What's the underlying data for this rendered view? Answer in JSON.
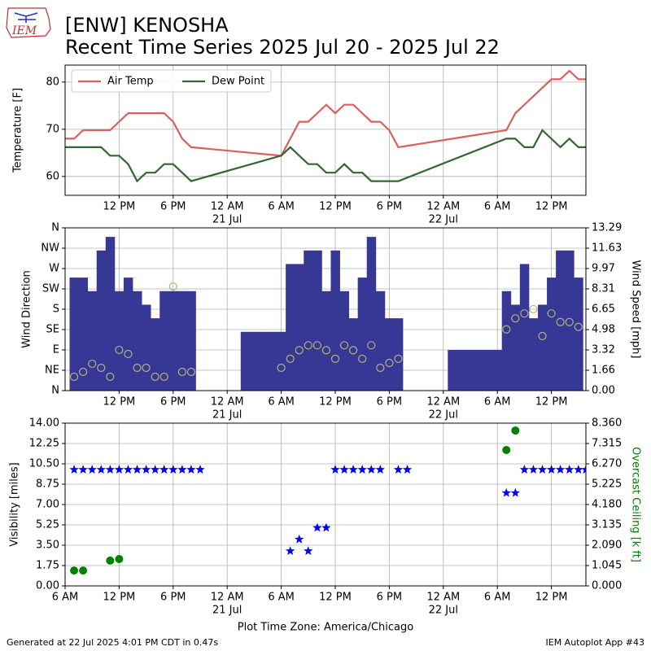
{
  "header": {
    "title": "[ENW] KENOSHA",
    "subtitle": "Recent Time Series 2025 Jul 20 - 2025 Jul 22"
  },
  "logo": {
    "text": "IEM"
  },
  "footer": {
    "left": "Generated at 22 Jul 2025 4:01 PM CDT in 0.47s",
    "right": "IEM Autoplot App #43"
  },
  "chart_data": [
    {
      "type": "line",
      "ylabel": "Temperature [F]",
      "legend": "upper left",
      "grid": true,
      "xlim": [
        "2025-07-20T06:00",
        "2025-07-22T15:50"
      ],
      "xticks": [
        {
          "value": "2025-07-20T12:00",
          "label": "12 PM"
        },
        {
          "value": "2025-07-20T18:00",
          "label": "6 PM"
        },
        {
          "value": "2025-07-21T00:00",
          "label": "12 AM",
          "sublabel": "21 Jul"
        },
        {
          "value": "2025-07-21T06:00",
          "label": "6 AM"
        },
        {
          "value": "2025-07-21T12:00",
          "label": "12 PM"
        },
        {
          "value": "2025-07-21T18:00",
          "label": "6 PM"
        },
        {
          "value": "2025-07-22T00:00",
          "label": "12 AM",
          "sublabel": "22 Jul"
        },
        {
          "value": "2025-07-22T06:00",
          "label": "6 AM"
        },
        {
          "value": "2025-07-22T12:00",
          "label": "12 PM"
        }
      ],
      "ylim": [
        56,
        83.6
      ],
      "yticks": [
        60,
        70,
        80
      ],
      "series": [
        {
          "name": "Air Temp",
          "type": "line",
          "color": "#d9605f",
          "x": [
            "2025-07-20T06:00",
            "2025-07-20T07:00",
            "2025-07-20T08:00",
            "2025-07-20T11:00",
            "2025-07-20T13:00",
            "2025-07-20T17:00",
            "2025-07-20T18:00",
            "2025-07-20T19:00",
            "2025-07-20T20:00",
            "2025-07-21T06:00",
            "2025-07-21T08:00",
            "2025-07-21T09:00",
            "2025-07-21T11:00",
            "2025-07-21T12:00",
            "2025-07-21T13:00",
            "2025-07-21T14:00",
            "2025-07-21T16:00",
            "2025-07-21T17:00",
            "2025-07-21T18:00",
            "2025-07-21T19:00",
            "2025-07-22T07:00",
            "2025-07-22T08:00",
            "2025-07-22T12:00",
            "2025-07-22T13:00",
            "2025-07-22T14:00",
            "2025-07-22T15:00",
            "2025-07-22T15:50"
          ],
          "values": [
            68,
            68,
            69.8,
            69.8,
            73.4,
            73.4,
            71.6,
            68,
            66.2,
            64.4,
            71.6,
            71.6,
            75.2,
            73.4,
            75.2,
            75.2,
            71.6,
            71.6,
            69.8,
            66.2,
            69.8,
            73.4,
            80.6,
            80.6,
            82.4,
            80.6,
            80.6
          ]
        },
        {
          "name": "Dew Point",
          "type": "line",
          "color": "#336633",
          "x": [
            "2025-07-20T06:00",
            "2025-07-20T10:00",
            "2025-07-20T11:00",
            "2025-07-20T12:00",
            "2025-07-20T13:00",
            "2025-07-20T14:00",
            "2025-07-20T15:00",
            "2025-07-20T16:00",
            "2025-07-20T17:00",
            "2025-07-20T18:00",
            "2025-07-20T20:00",
            "2025-07-21T06:00",
            "2025-07-21T07:00",
            "2025-07-21T09:00",
            "2025-07-21T10:00",
            "2025-07-21T11:00",
            "2025-07-21T12:00",
            "2025-07-21T13:00",
            "2025-07-21T14:00",
            "2025-07-21T15:00",
            "2025-07-21T16:00",
            "2025-07-21T19:00",
            "2025-07-22T07:00",
            "2025-07-22T08:00",
            "2025-07-22T09:00",
            "2025-07-22T10:00",
            "2025-07-22T11:00",
            "2025-07-22T13:00",
            "2025-07-22T14:00",
            "2025-07-22T15:00",
            "2025-07-22T15:50"
          ],
          "values": [
            66.2,
            66.2,
            64.4,
            64.4,
            62.6,
            59,
            60.8,
            60.8,
            62.6,
            62.6,
            59,
            64.4,
            66.2,
            62.6,
            62.6,
            60.8,
            60.8,
            62.6,
            60.8,
            60.8,
            59,
            59,
            68,
            68,
            66.2,
            66.2,
            69.8,
            66.2,
            68,
            66.2,
            66.2
          ]
        }
      ]
    },
    {
      "type": "bar",
      "ylabel": "Wind Direction",
      "y2label": "Wind Speed [mph]",
      "grid": true,
      "xlim": [
        "2025-07-20T06:00",
        "2025-07-22T15:50"
      ],
      "xticks": [
        {
          "value": "2025-07-20T12:00",
          "label": "12 PM"
        },
        {
          "value": "2025-07-20T18:00",
          "label": "6 PM"
        },
        {
          "value": "2025-07-21T00:00",
          "label": "12 AM",
          "sublabel": "21 Jul"
        },
        {
          "value": "2025-07-21T06:00",
          "label": "6 AM"
        },
        {
          "value": "2025-07-21T12:00",
          "label": "12 PM"
        },
        {
          "value": "2025-07-21T18:00",
          "label": "6 PM"
        },
        {
          "value": "2025-07-22T00:00",
          "label": "12 AM",
          "sublabel": "22 Jul"
        },
        {
          "value": "2025-07-22T06:00",
          "label": "6 AM"
        },
        {
          "value": "2025-07-22T12:00",
          "label": "12 PM"
        }
      ],
      "ylim": [
        0,
        360
      ],
      "yticks": [
        {
          "value": 0,
          "label": "N"
        },
        {
          "value": 45,
          "label": "NE"
        },
        {
          "value": 90,
          "label": "E"
        },
        {
          "value": 135,
          "label": "SE"
        },
        {
          "value": 180,
          "label": "S"
        },
        {
          "value": 225,
          "label": "SW"
        },
        {
          "value": 270,
          "label": "W"
        },
        {
          "value": 315,
          "label": "NW"
        },
        {
          "value": 360,
          "label": "N"
        }
      ],
      "y2lim": [
        0,
        13.29
      ],
      "y2ticks": [
        {
          "value": 0,
          "label": "0.00"
        },
        {
          "value": 1.66,
          "label": "1.66"
        },
        {
          "value": 3.32,
          "label": "3.32"
        },
        {
          "value": 4.98,
          "label": "4.98"
        },
        {
          "value": 6.65,
          "label": "6.65"
        },
        {
          "value": 8.31,
          "label": "8.31"
        },
        {
          "value": 9.97,
          "label": "9.97"
        },
        {
          "value": 11.63,
          "label": "11.63"
        },
        {
          "value": 13.29,
          "label": "13.29"
        }
      ],
      "series": [
        {
          "type": "bar",
          "color": "#373796",
          "x": [
            "2025-07-20T07:00",
            "2025-07-20T08:00",
            "2025-07-20T09:00",
            "2025-07-20T10:00",
            "2025-07-20T11:00",
            "2025-07-20T12:00",
            "2025-07-20T13:00",
            "2025-07-20T14:00",
            "2025-07-20T15:00",
            "2025-07-20T16:00",
            "2025-07-20T17:00",
            "2025-07-20T18:00",
            "2025-07-20T19:00",
            "2025-07-20T20:00",
            "2025-07-21T02:00",
            "2025-07-21T03:00",
            "2025-07-21T04:00",
            "2025-07-21T05:00",
            "2025-07-21T06:00",
            "2025-07-21T07:00",
            "2025-07-21T08:00",
            "2025-07-21T09:00",
            "2025-07-21T10:00",
            "2025-07-21T11:00",
            "2025-07-21T12:00",
            "2025-07-21T13:00",
            "2025-07-21T14:00",
            "2025-07-21T15:00",
            "2025-07-21T16:00",
            "2025-07-21T17:00",
            "2025-07-21T18:00",
            "2025-07-21T19:00",
            "2025-07-22T01:00",
            "2025-07-22T02:00",
            "2025-07-22T03:00",
            "2025-07-22T04:00",
            "2025-07-22T05:00",
            "2025-07-22T06:00",
            "2025-07-22T07:00",
            "2025-07-22T08:00",
            "2025-07-22T09:00",
            "2025-07-22T10:00",
            "2025-07-22T11:00",
            "2025-07-22T12:00",
            "2025-07-22T13:00",
            "2025-07-22T14:00",
            "2025-07-22T15:00"
          ],
          "values": [
            250,
            250,
            220,
            310,
            340,
            220,
            250,
            220,
            190,
            160,
            220,
            220,
            220,
            220,
            130,
            130,
            130,
            130,
            130,
            280,
            280,
            310,
            310,
            220,
            310,
            220,
            160,
            250,
            340,
            220,
            160,
            160,
            90,
            90,
            90,
            90,
            90,
            90,
            220,
            190,
            280,
            160,
            190,
            250,
            310,
            310,
            250
          ]
        },
        {
          "type": "scatter",
          "axis": "y2",
          "marker": "open-circle",
          "color": "#b3b37a",
          "x": [
            "2025-07-20T07:00",
            "2025-07-20T08:00",
            "2025-07-20T09:00",
            "2025-07-20T10:00",
            "2025-07-20T11:00",
            "2025-07-20T12:00",
            "2025-07-20T13:00",
            "2025-07-20T14:00",
            "2025-07-20T15:00",
            "2025-07-20T16:00",
            "2025-07-20T17:00",
            "2025-07-20T18:00",
            "2025-07-20T19:00",
            "2025-07-20T20:00",
            "2025-07-21T02:00",
            "2025-07-21T03:00",
            "2025-07-21T04:00",
            "2025-07-21T05:00",
            "2025-07-21T06:00",
            "2025-07-21T07:00",
            "2025-07-21T08:00",
            "2025-07-21T09:00",
            "2025-07-21T10:00",
            "2025-07-21T11:00",
            "2025-07-21T12:00",
            "2025-07-21T13:00",
            "2025-07-21T14:00",
            "2025-07-21T15:00",
            "2025-07-21T16:00",
            "2025-07-21T17:00",
            "2025-07-21T18:00",
            "2025-07-21T19:00",
            "2025-07-22T01:00",
            "2025-07-22T02:00",
            "2025-07-22T03:00",
            "2025-07-22T04:00",
            "2025-07-22T05:00",
            "2025-07-22T06:00",
            "2025-07-22T07:00",
            "2025-07-22T08:00",
            "2025-07-22T09:00",
            "2025-07-22T10:00",
            "2025-07-22T11:00",
            "2025-07-22T12:00",
            "2025-07-22T13:00",
            "2025-07-22T14:00",
            "2025-07-22T15:00"
          ],
          "values": [
            1.13,
            1.53,
            2.19,
            1.86,
            1.13,
            3.32,
            2.99,
            1.86,
            1.86,
            1.13,
            1.13,
            8.5,
            1.53,
            1.53,
            null,
            null,
            null,
            null,
            1.86,
            2.6,
            3.3,
            3.7,
            3.7,
            3.3,
            2.6,
            3.7,
            3.3,
            2.6,
            3.7,
            1.86,
            2.26,
            2.6,
            null,
            null,
            null,
            null,
            null,
            null,
            5.0,
            5.9,
            6.3,
            6.65,
            4.45,
            6.3,
            5.6,
            5.6,
            5.2
          ]
        }
      ]
    },
    {
      "type": "scatter",
      "ylabel": "Visibility [miles]",
      "y2label": "Overcast Ceiling [k ft]",
      "y2label_color": "#008000",
      "xlabel": "Plot Time Zone: America/Chicago",
      "grid": true,
      "xlim": [
        "2025-07-20T06:00",
        "2025-07-22T15:50"
      ],
      "xticks": [
        {
          "value": "2025-07-20T06:00",
          "label": "6 AM"
        },
        {
          "value": "2025-07-20T12:00",
          "label": "12 PM"
        },
        {
          "value": "2025-07-20T18:00",
          "label": "6 PM"
        },
        {
          "value": "2025-07-21T00:00",
          "label": "12 AM",
          "sublabel": "21 Jul"
        },
        {
          "value": "2025-07-21T06:00",
          "label": "6 AM"
        },
        {
          "value": "2025-07-21T12:00",
          "label": "12 PM"
        },
        {
          "value": "2025-07-21T18:00",
          "label": "6 PM"
        },
        {
          "value": "2025-07-22T00:00",
          "label": "12 AM",
          "sublabel": "22 Jul"
        },
        {
          "value": "2025-07-22T06:00",
          "label": "6 AM"
        },
        {
          "value": "2025-07-22T12:00",
          "label": "12 PM"
        }
      ],
      "ylim": [
        0,
        14
      ],
      "yticks": [
        {
          "value": 0,
          "label": "0.00"
        },
        {
          "value": 1.75,
          "label": "1.75"
        },
        {
          "value": 3.5,
          "label": "3.50"
        },
        {
          "value": 5.25,
          "label": "5.25"
        },
        {
          "value": 7,
          "label": "7.00"
        },
        {
          "value": 8.75,
          "label": "8.75"
        },
        {
          "value": 10.5,
          "label": "10.50"
        },
        {
          "value": 12.25,
          "label": "12.25"
        },
        {
          "value": 14,
          "label": "14.00"
        }
      ],
      "y2lim": [
        0,
        8.36
      ],
      "y2ticks": [
        {
          "value": 0,
          "label": "0.000"
        },
        {
          "value": 1.045,
          "label": "1.045"
        },
        {
          "value": 2.09,
          "label": "2.090"
        },
        {
          "value": 3.135,
          "label": "3.135"
        },
        {
          "value": 4.18,
          "label": "4.180"
        },
        {
          "value": 5.225,
          "label": "5.225"
        },
        {
          "value": 6.27,
          "label": "6.270"
        },
        {
          "value": 7.315,
          "label": "7.315"
        },
        {
          "value": 8.36,
          "label": "8.360"
        }
      ],
      "series": [
        {
          "type": "scatter",
          "marker": "star",
          "color": "#0000ff",
          "x": [
            "2025-07-20T07:00",
            "2025-07-20T08:00",
            "2025-07-20T09:00",
            "2025-07-20T10:00",
            "2025-07-20T11:00",
            "2025-07-20T12:00",
            "2025-07-20T13:00",
            "2025-07-20T14:00",
            "2025-07-20T15:00",
            "2025-07-20T16:00",
            "2025-07-20T17:00",
            "2025-07-20T18:00",
            "2025-07-20T19:00",
            "2025-07-20T20:00",
            "2025-07-20T21:00",
            "2025-07-21T07:00",
            "2025-07-21T08:00",
            "2025-07-21T09:00",
            "2025-07-21T10:00",
            "2025-07-21T11:00",
            "2025-07-21T12:00",
            "2025-07-21T13:00",
            "2025-07-21T14:00",
            "2025-07-21T15:00",
            "2025-07-21T16:00",
            "2025-07-21T17:00",
            "2025-07-21T19:00",
            "2025-07-21T20:00",
            "2025-07-22T07:00",
            "2025-07-22T08:00",
            "2025-07-22T09:00",
            "2025-07-22T10:00",
            "2025-07-22T11:00",
            "2025-07-22T12:00",
            "2025-07-22T13:00",
            "2025-07-22T14:00",
            "2025-07-22T15:00",
            "2025-07-22T15:50"
          ],
          "values": [
            10,
            10,
            10,
            10,
            10,
            10,
            10,
            10,
            10,
            10,
            10,
            10,
            10,
            10,
            10,
            3,
            4,
            3,
            5,
            5,
            10,
            10,
            10,
            10,
            10,
            10,
            10,
            10,
            8,
            8,
            10,
            10,
            10,
            10,
            10,
            10,
            10,
            10
          ]
        },
        {
          "type": "scatter",
          "axis": "y2",
          "marker": "circle",
          "color": "#008000",
          "x": [
            "2025-07-20T07:00",
            "2025-07-20T08:00",
            "2025-07-20T11:00",
            "2025-07-20T12:00",
            "2025-07-22T07:00",
            "2025-07-22T08:00"
          ],
          "values": [
            0.79,
            0.79,
            1.3,
            1.38,
            6.98,
            7.98
          ]
        }
      ]
    }
  ]
}
